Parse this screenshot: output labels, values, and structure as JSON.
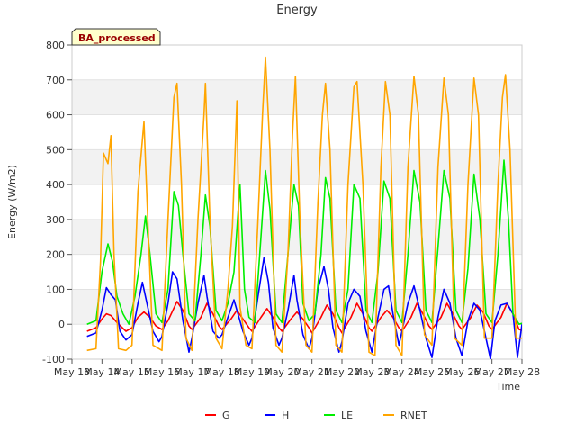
{
  "chart_data": {
    "type": "line",
    "title": "Energy",
    "xlabel": "Time",
    "ylabel": "Energy (W/m2)",
    "annotation": "BA_processed",
    "xlim": [
      "May 13",
      "May 28"
    ],
    "ylim": [
      -100,
      800
    ],
    "x_ticks": [
      "May 13",
      "May 14",
      "May 15",
      "May 16",
      "May 17",
      "May 18",
      "May 19",
      "May 20",
      "May 21",
      "May 22",
      "May 23",
      "May 24",
      "May 25",
      "May 26",
      "May 27",
      "May 28"
    ],
    "y_ticks": [
      -100,
      0,
      100,
      200,
      300,
      400,
      500,
      600,
      700,
      800
    ],
    "grid": "horizontal alternating bands",
    "legend_position": "bottom-center",
    "x_units": "days since May 13 00:00",
    "series": [
      {
        "name": "G",
        "color": "#ff0000",
        "points": [
          [
            0.5,
            -20
          ],
          [
            0.8,
            -10
          ],
          [
            1.0,
            15
          ],
          [
            1.15,
            30
          ],
          [
            1.3,
            25
          ],
          [
            1.5,
            5
          ],
          [
            1.8,
            -20
          ],
          [
            2.0,
            -10
          ],
          [
            2.2,
            20
          ],
          [
            2.4,
            35
          ],
          [
            2.6,
            20
          ],
          [
            2.8,
            -5
          ],
          [
            3.0,
            -15
          ],
          [
            3.2,
            10
          ],
          [
            3.5,
            65
          ],
          [
            3.7,
            40
          ],
          [
            3.9,
            -5
          ],
          [
            4.0,
            -15
          ],
          [
            4.3,
            20
          ],
          [
            4.5,
            60
          ],
          [
            4.7,
            30
          ],
          [
            4.9,
            -5
          ],
          [
            5.0,
            -15
          ],
          [
            5.3,
            15
          ],
          [
            5.5,
            40
          ],
          [
            5.7,
            15
          ],
          [
            5.9,
            -10
          ],
          [
            6.0,
            -20
          ],
          [
            6.3,
            20
          ],
          [
            6.5,
            45
          ],
          [
            6.7,
            20
          ],
          [
            6.9,
            -10
          ],
          [
            7.0,
            -20
          ],
          [
            7.3,
            15
          ],
          [
            7.5,
            35
          ],
          [
            7.7,
            15
          ],
          [
            7.9,
            -10
          ],
          [
            8.0,
            -25
          ],
          [
            8.3,
            20
          ],
          [
            8.5,
            55
          ],
          [
            8.7,
            30
          ],
          [
            8.9,
            -10
          ],
          [
            9.0,
            -25
          ],
          [
            9.3,
            20
          ],
          [
            9.5,
            60
          ],
          [
            9.7,
            30
          ],
          [
            9.9,
            -10
          ],
          [
            10.0,
            -20
          ],
          [
            10.3,
            20
          ],
          [
            10.5,
            40
          ],
          [
            10.7,
            20
          ],
          [
            10.9,
            -10
          ],
          [
            11.0,
            -20
          ],
          [
            11.3,
            20
          ],
          [
            11.5,
            60
          ],
          [
            11.7,
            30
          ],
          [
            11.9,
            -5
          ],
          [
            12.0,
            -15
          ],
          [
            12.3,
            20
          ],
          [
            12.5,
            60
          ],
          [
            12.7,
            30
          ],
          [
            12.9,
            -5
          ],
          [
            13.0,
            -15
          ],
          [
            13.3,
            20
          ],
          [
            13.5,
            55
          ],
          [
            13.7,
            35
          ],
          [
            13.9,
            -5
          ],
          [
            14.0,
            -15
          ],
          [
            14.3,
            20
          ],
          [
            14.5,
            60
          ],
          [
            14.7,
            30
          ],
          [
            14.9,
            -15
          ],
          [
            15.1,
            -20
          ]
        ]
      },
      {
        "name": "H",
        "color": "#0000ff",
        "points": [
          [
            0.5,
            -35
          ],
          [
            0.8,
            -25
          ],
          [
            1.0,
            40
          ],
          [
            1.15,
            105
          ],
          [
            1.3,
            85
          ],
          [
            1.45,
            70
          ],
          [
            1.6,
            -20
          ],
          [
            1.8,
            -45
          ],
          [
            2.0,
            -30
          ],
          [
            2.2,
            60
          ],
          [
            2.35,
            120
          ],
          [
            2.5,
            60
          ],
          [
            2.7,
            -20
          ],
          [
            2.9,
            -50
          ],
          [
            3.0,
            -35
          ],
          [
            3.2,
            60
          ],
          [
            3.35,
            150
          ],
          [
            3.5,
            130
          ],
          [
            3.7,
            10
          ],
          [
            3.9,
            -80
          ],
          [
            4.0,
            -40
          ],
          [
            4.2,
            60
          ],
          [
            4.4,
            140
          ],
          [
            4.5,
            80
          ],
          [
            4.7,
            -20
          ],
          [
            4.9,
            -40
          ],
          [
            5.0,
            -30
          ],
          [
            5.2,
            20
          ],
          [
            5.4,
            70
          ],
          [
            5.5,
            40
          ],
          [
            5.7,
            -20
          ],
          [
            5.9,
            -60
          ],
          [
            6.0,
            -40
          ],
          [
            6.2,
            80
          ],
          [
            6.4,
            190
          ],
          [
            6.55,
            120
          ],
          [
            6.7,
            -10
          ],
          [
            6.9,
            -60
          ],
          [
            7.0,
            -40
          ],
          [
            7.2,
            40
          ],
          [
            7.4,
            140
          ],
          [
            7.5,
            70
          ],
          [
            7.7,
            -30
          ],
          [
            7.9,
            -70
          ],
          [
            8.0,
            -40
          ],
          [
            8.2,
            100
          ],
          [
            8.4,
            165
          ],
          [
            8.55,
            100
          ],
          [
            8.7,
            -10
          ],
          [
            8.9,
            -80
          ],
          [
            9.0,
            -50
          ],
          [
            9.2,
            60
          ],
          [
            9.4,
            100
          ],
          [
            9.6,
            80
          ],
          [
            9.8,
            -20
          ],
          [
            10.0,
            -80
          ],
          [
            10.2,
            20
          ],
          [
            10.4,
            100
          ],
          [
            10.55,
            110
          ],
          [
            10.7,
            30
          ],
          [
            10.9,
            -60
          ],
          [
            11.0,
            -20
          ],
          [
            11.2,
            60
          ],
          [
            11.4,
            110
          ],
          [
            11.6,
            40
          ],
          [
            11.8,
            -40
          ],
          [
            12.0,
            -95
          ],
          [
            12.2,
            20
          ],
          [
            12.4,
            100
          ],
          [
            12.6,
            60
          ],
          [
            12.8,
            -40
          ],
          [
            13.0,
            -90
          ],
          [
            13.2,
            10
          ],
          [
            13.4,
            60
          ],
          [
            13.6,
            40
          ],
          [
            13.8,
            -40
          ],
          [
            13.95,
            -100
          ],
          [
            14.1,
            10
          ],
          [
            14.3,
            55
          ],
          [
            14.5,
            60
          ],
          [
            14.7,
            30
          ],
          [
            14.85,
            -95
          ],
          [
            15.0,
            0
          ],
          [
            15.1,
            5
          ]
        ]
      },
      {
        "name": "LE",
        "color": "#00ee00",
        "points": [
          [
            0.5,
            0
          ],
          [
            0.8,
            10
          ],
          [
            1.0,
            150
          ],
          [
            1.2,
            230
          ],
          [
            1.35,
            180
          ],
          [
            1.5,
            80
          ],
          [
            1.7,
            30
          ],
          [
            1.9,
            0
          ],
          [
            2.1,
            80
          ],
          [
            2.3,
            200
          ],
          [
            2.45,
            310
          ],
          [
            2.6,
            200
          ],
          [
            2.8,
            30
          ],
          [
            3.0,
            5
          ],
          [
            3.2,
            100
          ],
          [
            3.4,
            380
          ],
          [
            3.55,
            340
          ],
          [
            3.7,
            200
          ],
          [
            3.9,
            30
          ],
          [
            4.1,
            10
          ],
          [
            4.3,
            200
          ],
          [
            4.45,
            370
          ],
          [
            4.6,
            280
          ],
          [
            4.8,
            40
          ],
          [
            5.0,
            10
          ],
          [
            5.2,
            60
          ],
          [
            5.4,
            150
          ],
          [
            5.6,
            400
          ],
          [
            5.75,
            100
          ],
          [
            5.9,
            20
          ],
          [
            6.1,
            5
          ],
          [
            6.3,
            250
          ],
          [
            6.45,
            440
          ],
          [
            6.6,
            330
          ],
          [
            6.8,
            30
          ],
          [
            7.0,
            5
          ],
          [
            7.2,
            200
          ],
          [
            7.4,
            400
          ],
          [
            7.55,
            340
          ],
          [
            7.7,
            60
          ],
          [
            7.9,
            10
          ],
          [
            8.1,
            30
          ],
          [
            8.3,
            200
          ],
          [
            8.45,
            420
          ],
          [
            8.6,
            360
          ],
          [
            8.8,
            40
          ],
          [
            9.0,
            5
          ],
          [
            9.2,
            100
          ],
          [
            9.4,
            400
          ],
          [
            9.6,
            360
          ],
          [
            9.8,
            40
          ],
          [
            10.0,
            5
          ],
          [
            10.2,
            150
          ],
          [
            10.4,
            410
          ],
          [
            10.6,
            360
          ],
          [
            10.8,
            40
          ],
          [
            11.0,
            5
          ],
          [
            11.2,
            200
          ],
          [
            11.4,
            440
          ],
          [
            11.6,
            350
          ],
          [
            11.8,
            40
          ],
          [
            12.0,
            5
          ],
          [
            12.2,
            220
          ],
          [
            12.4,
            440
          ],
          [
            12.6,
            360
          ],
          [
            12.8,
            40
          ],
          [
            13.0,
            5
          ],
          [
            13.2,
            160
          ],
          [
            13.4,
            430
          ],
          [
            13.6,
            300
          ],
          [
            13.8,
            30
          ],
          [
            14.0,
            5
          ],
          [
            14.2,
            200
          ],
          [
            14.4,
            470
          ],
          [
            14.55,
            300
          ],
          [
            14.7,
            30
          ],
          [
            14.9,
            0
          ],
          [
            15.1,
            5
          ]
        ]
      },
      {
        "name": "RNET",
        "color": "#ffa500",
        "points": [
          [
            0.5,
            -75
          ],
          [
            0.8,
            -70
          ],
          [
            0.95,
            180
          ],
          [
            1.05,
            490
          ],
          [
            1.2,
            460
          ],
          [
            1.3,
            540
          ],
          [
            1.4,
            200
          ],
          [
            1.55,
            -70
          ],
          [
            1.8,
            -75
          ],
          [
            2.0,
            -60
          ],
          [
            2.2,
            380
          ],
          [
            2.4,
            580
          ],
          [
            2.55,
            250
          ],
          [
            2.7,
            -60
          ],
          [
            3.0,
            -75
          ],
          [
            3.2,
            300
          ],
          [
            3.4,
            650
          ],
          [
            3.5,
            690
          ],
          [
            3.65,
            400
          ],
          [
            3.8,
            -40
          ],
          [
            4.0,
            -75
          ],
          [
            4.2,
            300
          ],
          [
            4.4,
            600
          ],
          [
            4.45,
            690
          ],
          [
            4.6,
            300
          ],
          [
            4.8,
            -40
          ],
          [
            5.0,
            -70
          ],
          [
            5.2,
            100
          ],
          [
            5.35,
            280
          ],
          [
            5.5,
            640
          ],
          [
            5.6,
            50
          ],
          [
            5.8,
            -60
          ],
          [
            6.0,
            -70
          ],
          [
            6.2,
            300
          ],
          [
            6.35,
            600
          ],
          [
            6.45,
            765
          ],
          [
            6.6,
            500
          ],
          [
            6.8,
            -60
          ],
          [
            7.0,
            -80
          ],
          [
            7.2,
            200
          ],
          [
            7.35,
            540
          ],
          [
            7.45,
            710
          ],
          [
            7.6,
            300
          ],
          [
            7.8,
            -60
          ],
          [
            8.0,
            -80
          ],
          [
            8.2,
            350
          ],
          [
            8.35,
            600
          ],
          [
            8.45,
            690
          ],
          [
            8.6,
            500
          ],
          [
            8.8,
            -60
          ],
          [
            9.0,
            -80
          ],
          [
            9.2,
            400
          ],
          [
            9.4,
            680
          ],
          [
            9.5,
            695
          ],
          [
            9.7,
            400
          ],
          [
            9.9,
            -80
          ],
          [
            10.1,
            -90
          ],
          [
            10.3,
            450
          ],
          [
            10.45,
            695
          ],
          [
            10.6,
            600
          ],
          [
            10.8,
            -60
          ],
          [
            11.0,
            -90
          ],
          [
            11.2,
            450
          ],
          [
            11.4,
            710
          ],
          [
            11.55,
            600
          ],
          [
            11.75,
            -30
          ],
          [
            12.0,
            -60
          ],
          [
            12.2,
            450
          ],
          [
            12.4,
            705
          ],
          [
            12.55,
            600
          ],
          [
            12.75,
            -40
          ],
          [
            13.0,
            -60
          ],
          [
            13.2,
            400
          ],
          [
            13.4,
            705
          ],
          [
            13.55,
            600
          ],
          [
            13.75,
            -40
          ],
          [
            14.0,
            -40
          ],
          [
            14.2,
            400
          ],
          [
            14.35,
            650
          ],
          [
            14.45,
            715
          ],
          [
            14.6,
            500
          ],
          [
            14.8,
            -40
          ],
          [
            15.1,
            -40
          ]
        ]
      }
    ]
  }
}
